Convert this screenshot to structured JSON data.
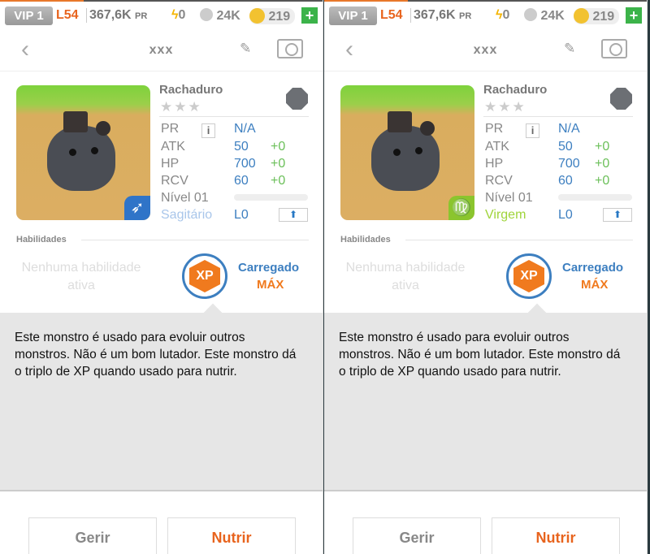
{
  "status_bar": {
    "vip": "VIP 1",
    "level": "L54",
    "power": "367,6K",
    "power_unit": "PR",
    "energy": "0",
    "paw": "24K",
    "coins": "219",
    "add": "+"
  },
  "nav": {
    "title": "xxx"
  },
  "monster": {
    "name": "Rachaduro",
    "stars": "★★★",
    "stats": [
      {
        "label": "PR",
        "value": "N/A",
        "bonus": ""
      },
      {
        "label": "ATK",
        "value": "50",
        "bonus": "+0"
      },
      {
        "label": "HP",
        "value": "700",
        "bonus": "+0"
      },
      {
        "label": "RCV",
        "value": "60",
        "bonus": "+0"
      }
    ],
    "level_label": "Nível 01",
    "level_progress": 0,
    "rank": "L0",
    "info": "i",
    "upgrade_icon": "arrow-up-icon"
  },
  "abilities": {
    "heading": "Habilidades",
    "none": "Nenhuma habilidade ativa",
    "xp_badge": "XP",
    "charged": "Carregado",
    "max": "MÁX"
  },
  "description": "Este monstro é usado para evoluir outros monstros. Não é um bom lutador. Este monstro dá o triplo de XP quando usado para nutrir.",
  "buttons": {
    "manage": "Gerir",
    "feed": "Nutrir"
  },
  "panels": [
    {
      "sign": "Sagitário",
      "sign_glyph": "➶",
      "sign_color": "#a9c6ea",
      "badge_color": "#2f74c8"
    },
    {
      "sign": "Virgem",
      "sign_glyph": "♍",
      "sign_color": "#9fd43a",
      "badge_color": "#8bc52e"
    }
  ],
  "colors": {
    "accent_orange": "#e8641e",
    "blue": "#3d7fc0",
    "green": "#6cc05a",
    "plus_green": "#3cb34a"
  }
}
